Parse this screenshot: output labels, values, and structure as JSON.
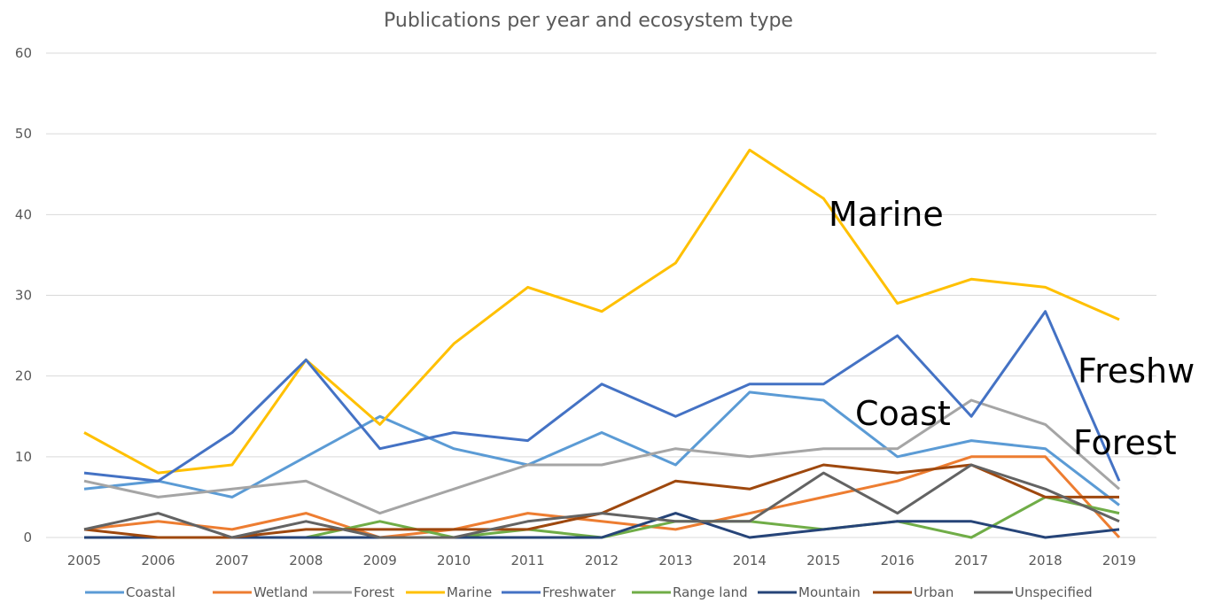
{
  "chart_data": {
    "type": "line",
    "title": "Publications per year and ecosystem type",
    "categories": [
      "2005",
      "2006",
      "2007",
      "2008",
      "2009",
      "2010",
      "2011",
      "2012",
      "2013",
      "2014",
      "2015",
      "2016",
      "2017",
      "2018",
      "2019"
    ],
    "ylim": [
      0,
      60
    ],
    "yticks": [
      0,
      10,
      20,
      30,
      40,
      50,
      60
    ],
    "grid": true,
    "legend_position": "bottom",
    "series": [
      {
        "name": "Coastal",
        "color": "#5b9bd5",
        "values": [
          6,
          7,
          5,
          10,
          15,
          11,
          9,
          13,
          9,
          18,
          17,
          10,
          12,
          11,
          4
        ]
      },
      {
        "name": "Wetland",
        "color": "#ed7d31",
        "values": [
          1,
          2,
          1,
          3,
          0,
          1,
          3,
          2,
          1,
          3,
          5,
          7,
          10,
          10,
          0
        ]
      },
      {
        "name": "Forest",
        "color": "#a5a5a5",
        "values": [
          7,
          5,
          6,
          7,
          3,
          6,
          9,
          9,
          11,
          10,
          11,
          11,
          17,
          14,
          6
        ]
      },
      {
        "name": "Marine",
        "color": "#ffc000",
        "values": [
          13,
          8,
          9,
          22,
          14,
          24,
          31,
          28,
          34,
          48,
          42,
          29,
          32,
          31,
          27
        ]
      },
      {
        "name": "Freshwater",
        "color": "#4472c4",
        "values": [
          8,
          7,
          13,
          22,
          11,
          13,
          12,
          19,
          15,
          19,
          19,
          25,
          15,
          28,
          7
        ]
      },
      {
        "name": "Range land",
        "color": "#70ad47",
        "values": [
          0,
          0,
          0,
          0,
          2,
          0,
          1,
          0,
          2,
          2,
          1,
          2,
          0,
          5,
          3
        ]
      },
      {
        "name": "Mountain",
        "color": "#264478",
        "values": [
          0,
          0,
          0,
          0,
          0,
          0,
          0,
          0,
          3,
          0,
          1,
          2,
          2,
          0,
          1
        ]
      },
      {
        "name": "Urban",
        "color": "#9e480e",
        "values": [
          1,
          0,
          0,
          1,
          1,
          1,
          1,
          3,
          7,
          6,
          9,
          8,
          9,
          5,
          5
        ]
      },
      {
        "name": "Unspecified",
        "color": "#636363",
        "values": [
          1,
          3,
          0,
          2,
          0,
          0,
          2,
          3,
          2,
          2,
          8,
          3,
          9,
          6,
          2
        ]
      }
    ],
    "annotations": [
      "Marine",
      "Freshw",
      "Coast",
      "Forest"
    ]
  }
}
